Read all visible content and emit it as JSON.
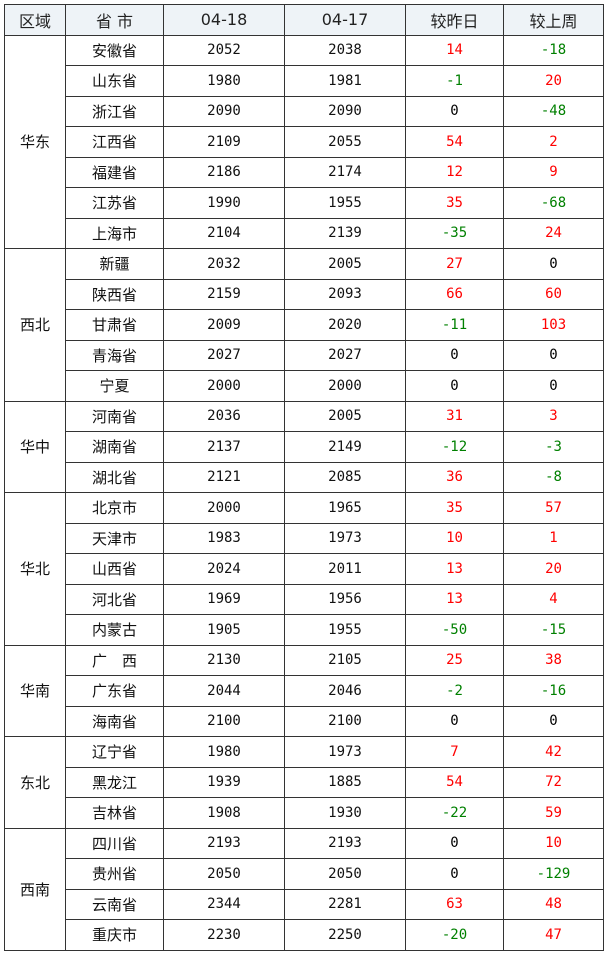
{
  "colors": {
    "up": "#ff0000",
    "down": "#008000",
    "zero": "#000000",
    "header_bg": "#eef3f7"
  },
  "headers": [
    "区域",
    "省 市",
    "04-18",
    "04-17",
    "较昨日",
    "较上周"
  ],
  "regions": [
    {
      "name": "华东",
      "rows": [
        [
          "安徽省",
          "2052",
          "2038",
          "14",
          "-18"
        ],
        [
          "山东省",
          "1980",
          "1981",
          "-1",
          "20"
        ],
        [
          "浙江省",
          "2090",
          "2090",
          "0",
          "-48"
        ],
        [
          "江西省",
          "2109",
          "2055",
          "54",
          "2"
        ],
        [
          "福建省",
          "2186",
          "2174",
          "12",
          "9"
        ],
        [
          "江苏省",
          "1990",
          "1955",
          "35",
          "-68"
        ],
        [
          "上海市",
          "2104",
          "2139",
          "-35",
          "24"
        ]
      ]
    },
    {
      "name": "西北",
      "rows": [
        [
          "新疆",
          "2032",
          "2005",
          "27",
          "0"
        ],
        [
          "陕西省",
          "2159",
          "2093",
          "66",
          "60"
        ],
        [
          "甘肃省",
          "2009",
          "2020",
          "-11",
          "103"
        ],
        [
          "青海省",
          "2027",
          "2027",
          "0",
          "0"
        ],
        [
          "宁夏",
          "2000",
          "2000",
          "0",
          "0"
        ]
      ]
    },
    {
      "name": "华中",
      "rows": [
        [
          "河南省",
          "2036",
          "2005",
          "31",
          "3"
        ],
        [
          "湖南省",
          "2137",
          "2149",
          "-12",
          "-3"
        ],
        [
          "湖北省",
          "2121",
          "2085",
          "36",
          "-8"
        ]
      ]
    },
    {
      "name": "华北",
      "rows": [
        [
          "北京市",
          "2000",
          "1965",
          "35",
          "57"
        ],
        [
          "天津市",
          "1983",
          "1973",
          "10",
          "1"
        ],
        [
          "山西省",
          "2024",
          "2011",
          "13",
          "20"
        ],
        [
          "河北省",
          "1969",
          "1956",
          "13",
          "4"
        ],
        [
          "内蒙古",
          "1905",
          "1955",
          "-50",
          "-15"
        ]
      ]
    },
    {
      "name": "华南",
      "rows": [
        [
          "广　西",
          "2130",
          "2105",
          "25",
          "38"
        ],
        [
          "广东省",
          "2044",
          "2046",
          "-2",
          "-16"
        ],
        [
          "海南省",
          "2100",
          "2100",
          "0",
          "0"
        ]
      ]
    },
    {
      "name": "东北",
      "rows": [
        [
          "辽宁省",
          "1980",
          "1973",
          "7",
          "42"
        ],
        [
          "黑龙江",
          "1939",
          "1885",
          "54",
          "72"
        ],
        [
          "吉林省",
          "1908",
          "1930",
          "-22",
          "59"
        ]
      ]
    },
    {
      "name": "西南",
      "rows": [
        [
          "四川省",
          "2193",
          "2193",
          "0",
          "10"
        ],
        [
          "贵州省",
          "2050",
          "2050",
          "0",
          "-129"
        ],
        [
          "云南省",
          "2344",
          "2281",
          "63",
          "48"
        ],
        [
          "重庆市",
          "2230",
          "2250",
          "-20",
          "47"
        ]
      ]
    }
  ]
}
